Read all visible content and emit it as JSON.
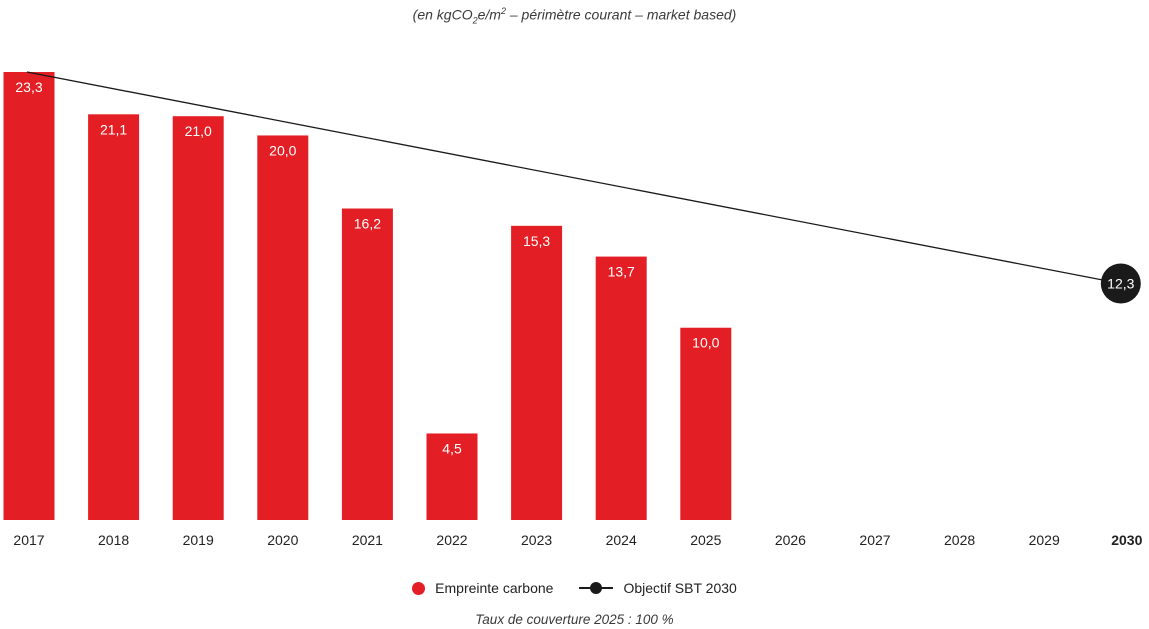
{
  "subtitle": {
    "prefix": "(en kgCO",
    "sub": "2",
    "mid": "e/m",
    "sup": "2",
    "suffix": " – périmètre courant – market based)"
  },
  "colors": {
    "bar": "#e31e24",
    "target": "#1a1a1a",
    "bar_label": "#ffffff"
  },
  "chart_data": {
    "type": "bar",
    "categories": [
      "2017",
      "2018",
      "2019",
      "2020",
      "2021",
      "2022",
      "2023",
      "2024",
      "2025",
      "2026",
      "2027",
      "2028",
      "2029",
      "2030"
    ],
    "highlight_category": "2030",
    "series": [
      {
        "name": "Empreinte carbone",
        "type": "bar",
        "values": [
          23.3,
          21.1,
          21.0,
          20.0,
          16.2,
          4.5,
          15.3,
          13.7,
          10.0,
          null,
          null,
          null,
          null,
          null
        ],
        "labels": [
          "23,3",
          "21,1",
          "21,0",
          "20,0",
          "16,2",
          "4,5",
          "15,3",
          "13,7",
          "10,0",
          "",
          "",
          "",
          "",
          ""
        ]
      },
      {
        "name": "Objectif SBT 2030",
        "type": "line",
        "points": [
          {
            "x": "2017",
            "y": 23.3
          },
          {
            "x": "2030",
            "y": 12.3
          }
        ],
        "end_label": "12,3"
      }
    ],
    "ylim": [
      0,
      23.3
    ],
    "grid": false,
    "legend_position": "bottom-center"
  },
  "legend": {
    "bar_label": "Empreinte carbone",
    "line_label": "Objectif SBT 2030"
  },
  "footnote": "Taux de couverture 2025 : 100 %"
}
